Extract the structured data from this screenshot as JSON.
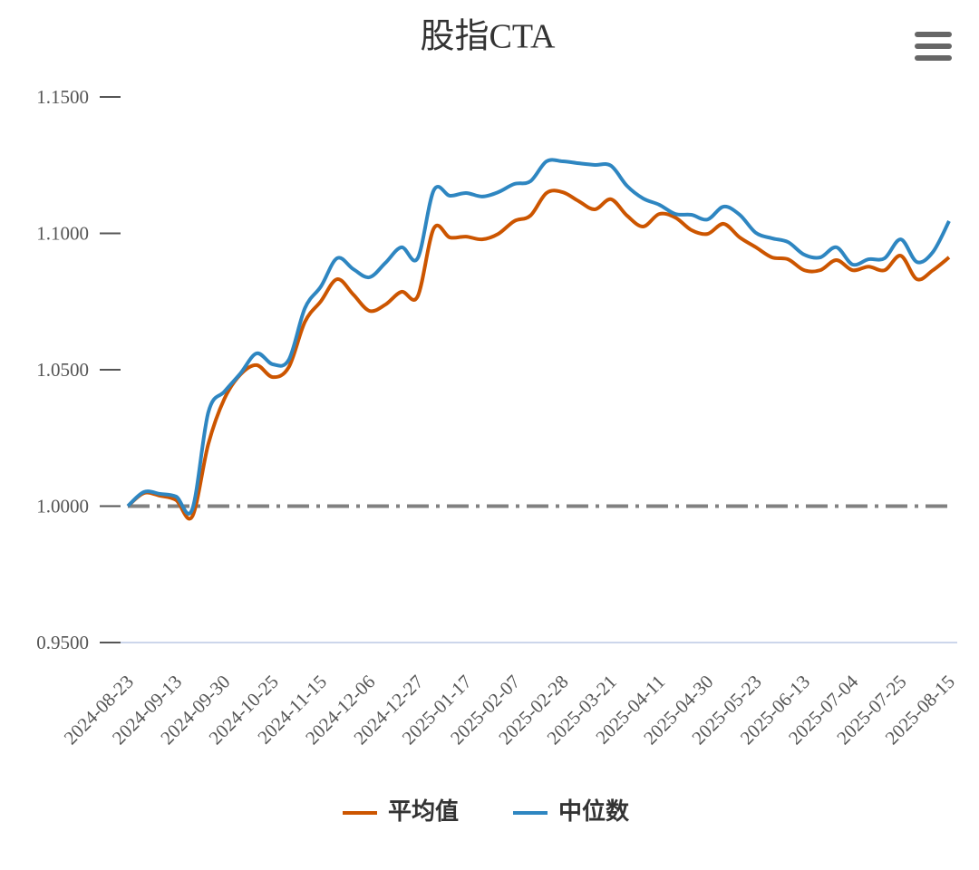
{
  "chart_data": {
    "type": "line",
    "title": "股指CTA",
    "categories": [
      "2024-08-23",
      null,
      null,
      "2024-09-13",
      null,
      null,
      "2024-09-30",
      null,
      null,
      "2024-10-25",
      null,
      null,
      "2024-11-15",
      null,
      null,
      "2024-12-06",
      null,
      null,
      "2024-12-27",
      null,
      null,
      "2025-01-17",
      null,
      null,
      "2025-02-07",
      null,
      null,
      "2025-02-28",
      null,
      null,
      "2025-03-21",
      null,
      null,
      "2025-04-11",
      null,
      null,
      "2025-04-30",
      null,
      null,
      "2025-05-23",
      null,
      null,
      "2025-06-13",
      null,
      null,
      "2025-07-04",
      null,
      null,
      "2025-07-25",
      null,
      null,
      "2025-08-15"
    ],
    "series": [
      {
        "name": "平均值",
        "color": "#cc5500",
        "values": [
          1.0,
          1.0048,
          1.0038,
          1.0022,
          0.9962,
          1.0228,
          1.0394,
          1.0483,
          1.0517,
          1.0473,
          1.051,
          1.0676,
          1.0752,
          1.0832,
          1.0776,
          1.0716,
          1.0739,
          1.0786,
          1.0769,
          1.1018,
          1.0985,
          1.0988,
          1.0978,
          1.0998,
          1.1045,
          1.1065,
          1.1148,
          1.1151,
          1.1118,
          1.1088,
          1.1125,
          1.1065,
          1.1025,
          1.1071,
          1.1058,
          1.1012,
          1.0998,
          1.1035,
          1.0985,
          1.0949,
          1.0912,
          1.0905,
          1.0865,
          1.0865,
          1.0902,
          1.0865,
          1.0878,
          1.0865,
          1.0918,
          1.0832,
          1.0865,
          1.0912
        ]
      },
      {
        "name": "中位数",
        "color": "#2e86c1",
        "values": [
          1.0,
          1.0052,
          1.0045,
          1.0035,
          0.9988,
          1.0344,
          1.042,
          1.0487,
          1.056,
          1.052,
          1.0537,
          1.0726,
          1.0806,
          1.0909,
          1.0869,
          1.0839,
          1.0892,
          1.0949,
          1.0909,
          1.1158,
          1.1138,
          1.1148,
          1.1135,
          1.1151,
          1.1181,
          1.1191,
          1.1264,
          1.1264,
          1.1257,
          1.1251,
          1.1248,
          1.1174,
          1.1128,
          1.1105,
          1.1071,
          1.1068,
          1.1051,
          1.1098,
          1.1068,
          1.1002,
          1.0982,
          1.0968,
          1.0922,
          1.0912,
          1.0949,
          1.0886,
          1.0905,
          1.0909,
          1.0978,
          1.0895,
          1.0932,
          1.1045
        ]
      }
    ],
    "ylim": [
      0.95,
      1.15
    ],
    "yticks": [
      {
        "value": 0.95,
        "label": "0.9500"
      },
      {
        "value": 1.0,
        "label": "1.0000"
      },
      {
        "value": 1.05,
        "label": "1.0500"
      },
      {
        "value": 1.1,
        "label": "1.1000"
      },
      {
        "value": 1.15,
        "label": "1.1500"
      }
    ],
    "plot_lines": [
      {
        "value": 1,
        "color": "#808080",
        "dash": "dashdot"
      }
    ],
    "legend": "bottom"
  }
}
